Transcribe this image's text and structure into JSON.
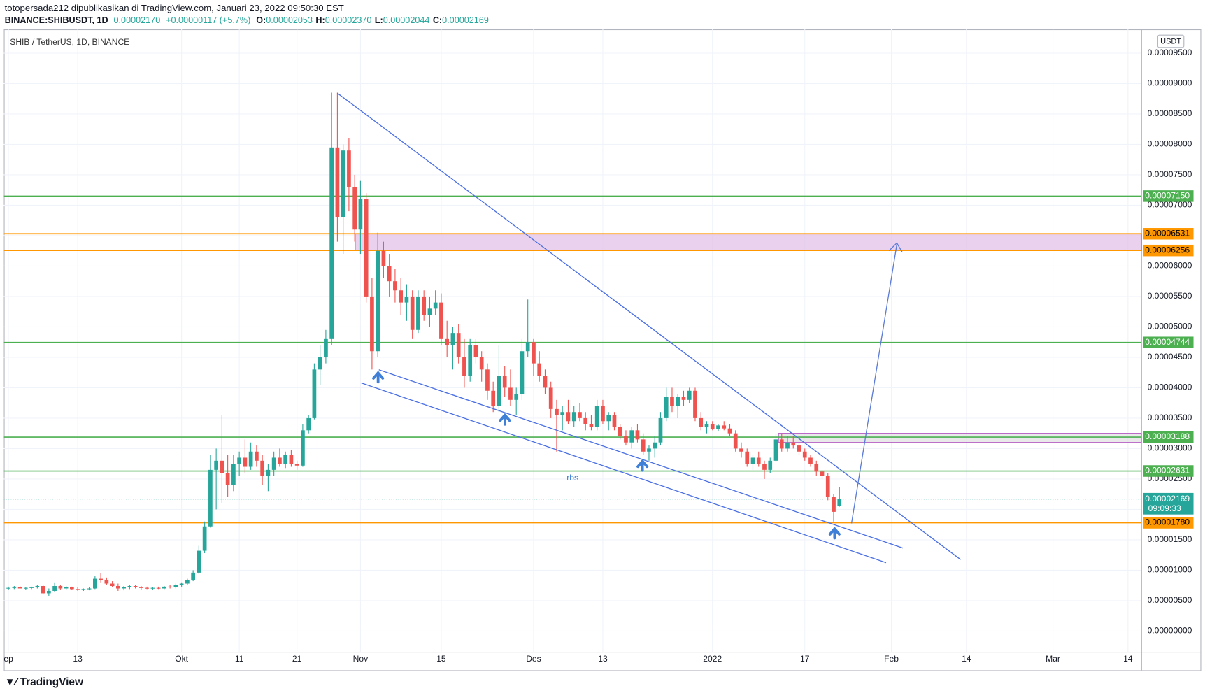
{
  "header": {
    "publisher": "totopersada212 dipublikasikan di TradingView.com, Januari 23, 2022 09:50:30 EST",
    "symbol": "BINANCE:SHIBUSDT, 1D",
    "last": "0.00002170",
    "change": "+0.00000117 (+5.7%)",
    "ohlc": [
      {
        "label": "O:",
        "value": "0.00002053"
      },
      {
        "label": "H:",
        "value": "0.00002370"
      },
      {
        "label": "L:",
        "value": "0.00002044"
      },
      {
        "label": "C:",
        "value": "0.00002169"
      }
    ]
  },
  "footer": {
    "brand": "TradingView"
  },
  "chart_data": {
    "type": "candlestick",
    "title": "SHIB / TetherUS, 1D, BINANCE",
    "currency": "USDT",
    "annotation": "rbs",
    "up_color": "#26a69a",
    "down_color": "#ef5350",
    "grid": true,
    "xlim": [
      -0.8,
      196.3
    ],
    "xticks": [
      {
        "value": 0,
        "label": "ep"
      },
      {
        "value": 12,
        "label": "13"
      },
      {
        "value": 30,
        "label": "Okt"
      },
      {
        "value": 40,
        "label": "11"
      },
      {
        "value": 50,
        "label": "21"
      },
      {
        "value": 61,
        "label": "Nov"
      },
      {
        "value": 75,
        "label": "15"
      },
      {
        "value": 91,
        "label": "Des"
      },
      {
        "value": 103,
        "label": "13"
      },
      {
        "value": 122,
        "label": "2022"
      },
      {
        "value": 138,
        "label": "17"
      },
      {
        "value": 153,
        "label": "Feb"
      },
      {
        "value": 166,
        "label": "14"
      },
      {
        "value": 181,
        "label": "Mar"
      },
      {
        "value": 194,
        "label": "14"
      }
    ],
    "ylim": [
      -3.41e-06,
      9.891e-05
    ],
    "yticks": [
      {
        "value": 0,
        "label": "0.00000000"
      },
      {
        "value": 5e-06,
        "label": "0.00000500"
      },
      {
        "value": 1e-05,
        "label": "0.00001000"
      },
      {
        "value": 1.5e-05,
        "label": "0.00001500"
      },
      {
        "value": 2e-05,
        "label": "0.00002000"
      },
      {
        "value": 2.5e-05,
        "label": "0.00002500"
      },
      {
        "value": 3e-05,
        "label": "0.00003000"
      },
      {
        "value": 3.5e-05,
        "label": "0.00003500"
      },
      {
        "value": 4e-05,
        "label": "0.00004000"
      },
      {
        "value": 4.5e-05,
        "label": "0.00004500"
      },
      {
        "value": 5e-05,
        "label": "0.00005000"
      },
      {
        "value": 5.5e-05,
        "label": "0.00005500"
      },
      {
        "value": 6e-05,
        "label": "0.00006000"
      },
      {
        "value": 6.5e-05,
        "label": "0.00006500"
      },
      {
        "value": 7e-05,
        "label": "0.00007000"
      },
      {
        "value": 7.5e-05,
        "label": "0.00007500"
      },
      {
        "value": 8e-05,
        "label": "0.00008000"
      },
      {
        "value": 8.5e-05,
        "label": "0.00008500"
      },
      {
        "value": 9e-05,
        "label": "0.00009000"
      },
      {
        "value": 9.5e-05,
        "label": "0.00009500"
      }
    ],
    "levels": [
      {
        "value": 7.15e-05,
        "label": "0.00007150",
        "color": "#4caf50",
        "text_color": "#ffffff"
      },
      {
        "value": 6.531e-05,
        "label": "0.00006531",
        "color": "#ff9800",
        "text_color": "#000000"
      },
      {
        "value": 6.256e-05,
        "label": "0.00006256",
        "color": "#ff9800",
        "text_color": "#000000"
      },
      {
        "value": 4.744e-05,
        "label": "0.00004744",
        "color": "#4caf50",
        "text_color": "#ffffff"
      },
      {
        "value": 3.188e-05,
        "label": "0.00003188",
        "color": "#4caf50",
        "text_color": "#ffffff"
      },
      {
        "value": 2.631e-05,
        "label": "0.00002631",
        "color": "#4caf50",
        "text_color": "#ffffff"
      },
      {
        "value": 1.78e-05,
        "label": "0.00001780",
        "color": "#ff9800",
        "text_color": "#000000"
      }
    ],
    "zones": [
      {
        "from": 6.256e-05,
        "to": 6.531e-05,
        "fill": "#e1bee7",
        "border": "#e53935"
      },
      {
        "from": 3.1e-05,
        "to": 3.25e-05,
        "fill": "#e0e0e0",
        "border": "#ba68c8"
      }
    ],
    "current": {
      "value": 2.169e-05,
      "label": "0.00002169",
      "countdown": "09:09:33",
      "color": "#26a69a"
    },
    "candles": [
      [
        7e-06,
        7.3e-06,
        6.8e-06,
        7.1e-06
      ],
      [
        7.1e-06,
        7.4e-06,
        6.9e-06,
        7.2e-06
      ],
      [
        7.2e-06,
        7.4e-06,
        7e-06,
        7e-06
      ],
      [
        7e-06,
        7.2e-06,
        6.8e-06,
        7.1e-06
      ],
      [
        7.1e-06,
        7.3e-06,
        6.9e-06,
        7.2e-06
      ],
      [
        7.2e-06,
        7.6e-06,
        7e-06,
        7.4e-06
      ],
      [
        7.4e-06,
        7.6e-06,
        6e-06,
        6.2e-06
      ],
      [
        6.2e-06,
        7e-06,
        5.8e-06,
        6.6e-06
      ],
      [
        6.6e-06,
        8e-06,
        6.4e-06,
        7.4e-06
      ],
      [
        7.4e-06,
        7.6e-06,
        6.8e-06,
        7e-06
      ],
      [
        7e-06,
        7.4e-06,
        6.8e-06,
        7.2e-06
      ],
      [
        7.2e-06,
        7.3e-06,
        6.8e-06,
        6.9e-06
      ],
      [
        6.9e-06,
        7.2e-06,
        6.6e-06,
        6.8e-06
      ],
      [
        6.8e-06,
        7e-06,
        6.6e-06,
        6.9e-06
      ],
      [
        6.9e-06,
        7.2e-06,
        6.7e-06,
        7e-06
      ],
      [
        7e-06,
        9e-06,
        6.9e-06,
        8.6e-06
      ],
      [
        8.6e-06,
        9.5e-06,
        8e-06,
        8.4e-06
      ],
      [
        8.4e-06,
        8.8e-06,
        7.6e-06,
        7.8e-06
      ],
      [
        7.8e-06,
        8.2e-06,
        7.2e-06,
        7.4e-06
      ],
      [
        7.4e-06,
        7.8e-06,
        6.6e-06,
        7e-06
      ],
      [
        7e-06,
        7.4e-06,
        6.7e-06,
        7.2e-06
      ],
      [
        7.2e-06,
        7.6e-06,
        6.9e-06,
        7.4e-06
      ],
      [
        7.4e-06,
        7.6e-06,
        7e-06,
        7.2e-06
      ],
      [
        7.2e-06,
        7.4e-06,
        6.8e-06,
        7.1e-06
      ],
      [
        7.1e-06,
        7.3e-06,
        6.9e-06,
        7e-06
      ],
      [
        7e-06,
        7.2e-06,
        6.8e-06,
        7.1e-06
      ],
      [
        7.1e-06,
        7.3e-06,
        6.9e-06,
        7e-06
      ],
      [
        7e-06,
        7.4e-06,
        6.9e-06,
        7.3e-06
      ],
      [
        7.3e-06,
        7.6e-06,
        7e-06,
        7.2e-06
      ],
      [
        7.2e-06,
        7.8e-06,
        7e-06,
        7.6e-06
      ],
      [
        7.6e-06,
        8e-06,
        7.3e-06,
        7.8e-06
      ],
      [
        7.8e-06,
        8.6e-06,
        7.6e-06,
        8.4e-06
      ],
      [
        8.4e-06,
        1e-05,
        8.2e-06,
        9.6e-06
      ],
      [
        9.6e-06,
        1.4e-05,
        9.4e-06,
        1.32e-05
      ],
      [
        1.32e-05,
        1.8e-05,
        1.28e-05,
        1.72e-05
      ],
      [
        1.72e-05,
        2.9e-05,
        1.7e-05,
        2.65e-05
      ],
      [
        2.65e-05,
        3e-05,
        2e-05,
        2.8e-05
      ],
      [
        2.8e-05,
        3.55e-05,
        2.1e-05,
        2.6e-05
      ],
      [
        2.6e-05,
        2.9e-05,
        2.2e-05,
        2.4e-05
      ],
      [
        2.4e-05,
        2.9e-05,
        2.3e-05,
        2.75e-05
      ],
      [
        2.75e-05,
        2.95e-05,
        2.55e-05,
        2.85e-05
      ],
      [
        2.85e-05,
        3.15e-05,
        2.6e-05,
        2.7e-05
      ],
      [
        2.7e-05,
        3.1e-05,
        2.65e-05,
        2.95e-05
      ],
      [
        2.95e-05,
        3.05e-05,
        2.7e-05,
        2.8e-05
      ],
      [
        2.8e-05,
        2.9e-05,
        2.4e-05,
        2.55e-05
      ],
      [
        2.55e-05,
        2.75e-05,
        2.3e-05,
        2.65e-05
      ],
      [
        2.65e-05,
        2.95e-05,
        2.55e-05,
        2.85e-05
      ],
      [
        2.85e-05,
        3e-05,
        2.7e-05,
        2.75e-05
      ],
      [
        2.75e-05,
        2.95e-05,
        2.68e-05,
        2.9e-05
      ],
      [
        2.9e-05,
        2.98e-05,
        2.7e-05,
        2.75e-05
      ],
      [
        2.75e-05,
        2.8e-05,
        2.65e-05,
        2.72e-05
      ],
      [
        2.72e-05,
        3.4e-05,
        2.7e-05,
        3.3e-05
      ],
      [
        3.3e-05,
        3.55e-05,
        3.25e-05,
        3.5e-05
      ],
      [
        3.5e-05,
        4.4e-05,
        3.48e-05,
        4.3e-05
      ],
      [
        4.3e-05,
        4.7e-05,
        4.05e-05,
        4.5e-05
      ],
      [
        4.5e-05,
        4.95e-05,
        4.4e-05,
        4.8e-05
      ],
      [
        4.8e-05,
        8.85e-05,
        4.7e-05,
        7.95e-05
      ],
      [
        7.95e-05,
        8.85e-05,
        6.4e-05,
        6.8e-05
      ],
      [
        6.8e-05,
        8e-05,
        6.2e-05,
        7.9e-05
      ],
      [
        7.9e-05,
        8.1e-05,
        6.9e-05,
        7.3e-05
      ],
      [
        7.3e-05,
        7.5e-05,
        6.4e-05,
        6.6e-05
      ],
      [
        6.6e-05,
        7.4e-05,
        6.2e-05,
        7.1e-05
      ],
      [
        7.1e-05,
        7.2e-05,
        5.4e-05,
        5.5e-05
      ],
      [
        5.5e-05,
        5.8e-05,
        4.3e-05,
        4.6e-05
      ],
      [
        4.6e-05,
        6.55e-05,
        4.5e-05,
        6.25e-05
      ],
      [
        6.25e-05,
        6.4e-05,
        5.8e-05,
        6e-05
      ],
      [
        6e-05,
        6.2e-05,
        5.5e-05,
        5.75e-05
      ],
      [
        5.75e-05,
        5.95e-05,
        5.4e-05,
        5.6e-05
      ],
      [
        5.6e-05,
        5.8e-05,
        5.2e-05,
        5.4e-05
      ],
      [
        5.4e-05,
        5.7e-05,
        5.1e-05,
        5.5e-05
      ],
      [
        5.5e-05,
        5.6e-05,
        4.8e-05,
        4.95e-05
      ],
      [
        4.95e-05,
        5.6e-05,
        4.9e-05,
        5.5e-05
      ],
      [
        5.5e-05,
        5.6e-05,
        5.1e-05,
        5.2e-05
      ],
      [
        5.2e-05,
        5.5e-05,
        5e-05,
        5.3e-05
      ],
      [
        5.3e-05,
        5.6e-05,
        5.2e-05,
        5.4e-05
      ],
      [
        5.4e-05,
        5.55e-05,
        4.7e-05,
        4.8e-05
      ],
      [
        4.8e-05,
        5.1e-05,
        4.5e-05,
        4.7e-05
      ],
      [
        4.7e-05,
        5e-05,
        4.3e-05,
        4.9e-05
      ],
      [
        4.9e-05,
        5.05e-05,
        4.4e-05,
        4.5e-05
      ],
      [
        4.5e-05,
        4.8e-05,
        4e-05,
        4.2e-05
      ],
      [
        4.2e-05,
        4.8e-05,
        4.1e-05,
        4.7e-05
      ],
      [
        4.7e-05,
        4.8e-05,
        4.4e-05,
        4.5e-05
      ],
      [
        4.5e-05,
        4.6e-05,
        4.1e-05,
        4.3e-05
      ],
      [
        4.3e-05,
        4.4e-05,
        3.8e-05,
        3.95e-05
      ],
      [
        3.95e-05,
        4.1e-05,
        3.6e-05,
        3.7e-05
      ],
      [
        3.7e-05,
        4.7e-05,
        3.6e-05,
        4.2e-05
      ],
      [
        4.2e-05,
        4.35e-05,
        3.85e-05,
        4e-05
      ],
      [
        4e-05,
        4.3e-05,
        3.7e-05,
        3.8e-05
      ],
      [
        3.8e-05,
        4e-05,
        3.55e-05,
        3.9e-05
      ],
      [
        3.9e-05,
        4.8e-05,
        3.8e-05,
        4.6e-05
      ],
      [
        4.6e-05,
        5.45e-05,
        4.5e-05,
        4.75e-05
      ],
      [
        4.75e-05,
        4.8e-05,
        4.2e-05,
        4.4e-05
      ],
      [
        4.4e-05,
        4.6e-05,
        4.1e-05,
        4.2e-05
      ],
      [
        4.2e-05,
        4.3e-05,
        3.9e-05,
        4e-05
      ],
      [
        4e-05,
        4.1e-05,
        3.5e-05,
        3.65e-05
      ],
      [
        3.65e-05,
        3.8e-05,
        2.95e-05,
        3.55e-05
      ],
      [
        3.55e-05,
        3.7e-05,
        3.3e-05,
        3.6e-05
      ],
      [
        3.6e-05,
        3.8e-05,
        3.4e-05,
        3.45e-05
      ],
      [
        3.45e-05,
        3.7e-05,
        3.35e-05,
        3.6e-05
      ],
      [
        3.6e-05,
        3.75e-05,
        3.45e-05,
        3.5e-05
      ],
      [
        3.5e-05,
        3.6e-05,
        3.3e-05,
        3.4e-05
      ],
      [
        3.4e-05,
        3.55e-05,
        3.3e-05,
        3.35e-05
      ],
      [
        3.35e-05,
        3.8e-05,
        3.3e-05,
        3.7e-05
      ],
      [
        3.7e-05,
        3.8e-05,
        3.4e-05,
        3.45e-05
      ],
      [
        3.45e-05,
        3.6e-05,
        3.3e-05,
        3.55e-05
      ],
      [
        3.55e-05,
        3.6e-05,
        3.3e-05,
        3.35e-05
      ],
      [
        3.35e-05,
        3.4e-05,
        3.15e-05,
        3.2e-05
      ],
      [
        3.2e-05,
        3.3e-05,
        3.05e-05,
        3.1e-05
      ],
      [
        3.1e-05,
        3.35e-05,
        3e-05,
        3.3e-05
      ],
      [
        3.3e-05,
        3.4e-05,
        3.1e-05,
        3.15e-05
      ],
      [
        3.15e-05,
        3.25e-05,
        2.9e-05,
        2.95e-05
      ],
      [
        2.95e-05,
        3.05e-05,
        2.8e-05,
        3e-05
      ],
      [
        3e-05,
        3.2e-05,
        2.85e-05,
        3.1e-05
      ],
      [
        3.1e-05,
        3.6e-05,
        3.05e-05,
        3.5e-05
      ],
      [
        3.5e-05,
        4e-05,
        3.45e-05,
        3.85e-05
      ],
      [
        3.85e-05,
        4e-05,
        3.6e-05,
        3.7e-05
      ],
      [
        3.7e-05,
        3.9e-05,
        3.5e-05,
        3.85e-05
      ],
      [
        3.85e-05,
        3.95e-05,
        3.7e-05,
        3.8e-05
      ],
      [
        3.8e-05,
        4e-05,
        3.75e-05,
        3.95e-05
      ],
      [
        3.95e-05,
        4e-05,
        3.45e-05,
        3.5e-05
      ],
      [
        3.5e-05,
        3.6e-05,
        3.3e-05,
        3.35e-05
      ],
      [
        3.35e-05,
        3.45e-05,
        3.25e-05,
        3.4e-05
      ],
      [
        3.4e-05,
        3.45e-05,
        3.3e-05,
        3.32e-05
      ],
      [
        3.32e-05,
        3.4e-05,
        3.28e-05,
        3.38e-05
      ],
      [
        3.38e-05,
        3.45e-05,
        3.3e-05,
        3.33e-05
      ],
      [
        3.33e-05,
        3.4e-05,
        3.2e-05,
        3.25e-05
      ],
      [
        3.25e-05,
        3.3e-05,
        2.95e-05,
        3e-05
      ],
      [
        3e-05,
        3.1e-05,
        2.85e-05,
        2.95e-05
      ],
      [
        2.95e-05,
        3e-05,
        2.7e-05,
        2.75e-05
      ],
      [
        2.75e-05,
        2.9e-05,
        2.65e-05,
        2.85e-05
      ],
      [
        2.85e-05,
        2.95e-05,
        2.7e-05,
        2.75e-05
      ],
      [
        2.75e-05,
        2.8e-05,
        2.5e-05,
        2.65e-05
      ],
      [
        2.65e-05,
        2.85e-05,
        2.6e-05,
        2.8e-05
      ],
      [
        2.8e-05,
        3.25e-05,
        2.78e-05,
        3.15e-05
      ],
      [
        3.15e-05,
        3.25e-05,
        2.95e-05,
        3e-05
      ],
      [
        3e-05,
        3.2e-05,
        2.95e-05,
        3.1e-05
      ],
      [
        3.1e-05,
        3.2e-05,
        3e-05,
        3.05e-05
      ],
      [
        3.05e-05,
        3.1e-05,
        2.9e-05,
        2.95e-05
      ],
      [
        2.95e-05,
        3e-05,
        2.8e-05,
        2.85e-05
      ],
      [
        2.85e-05,
        2.9e-05,
        2.7e-05,
        2.75e-05
      ],
      [
        2.75e-05,
        2.8e-05,
        2.55e-05,
        2.62e-05
      ],
      [
        2.62e-05,
        2.65e-05,
        2.5e-05,
        2.55e-05
      ],
      [
        2.55e-05,
        2.6e-05,
        2.15e-05,
        2.2e-05
      ],
      [
        2.2e-05,
        2.25e-05,
        1.8e-05,
        1.96e-05
      ],
      [
        2.053e-05,
        2.37e-05,
        2.044e-05,
        2.169e-05
      ]
    ]
  }
}
